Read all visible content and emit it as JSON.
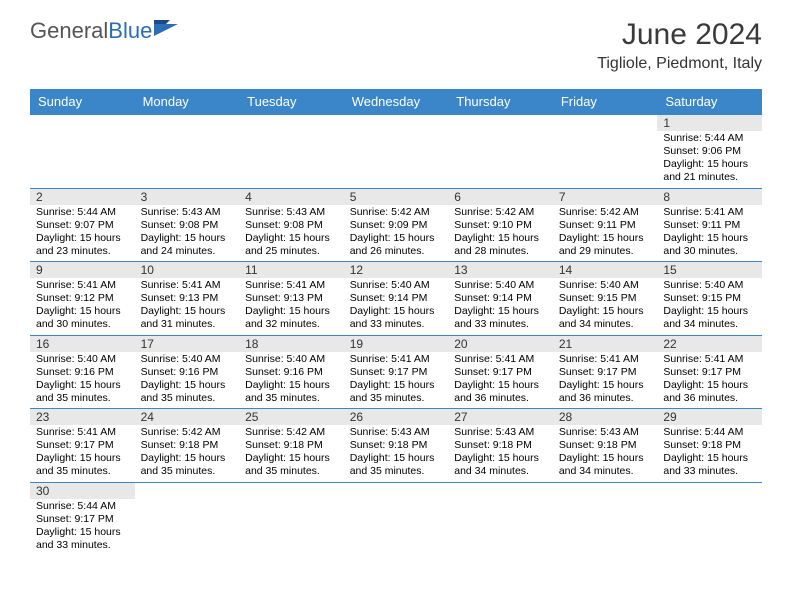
{
  "logo": {
    "word_grey": "General",
    "word_blue": "Blue"
  },
  "title": "June 2024",
  "location": "Tigliole, Piedmont, Italy",
  "colors": {
    "header_bg": "#3b86c8",
    "header_text": "#ffffff",
    "numbar_bg": "#e8e8e8",
    "text": "#000000",
    "border": "#3b86c8",
    "logo_blue": "#2a6db8"
  },
  "day_headers": [
    "Sunday",
    "Monday",
    "Tuesday",
    "Wednesday",
    "Thursday",
    "Friday",
    "Saturday"
  ],
  "weeks": [
    [
      null,
      null,
      null,
      null,
      null,
      null,
      {
        "n": "1",
        "sunrise": "Sunrise: 5:44 AM",
        "sunset": "Sunset: 9:06 PM",
        "daylight": "Daylight: 15 hours and 21 minutes."
      }
    ],
    [
      {
        "n": "2",
        "sunrise": "Sunrise: 5:44 AM",
        "sunset": "Sunset: 9:07 PM",
        "daylight": "Daylight: 15 hours and 23 minutes."
      },
      {
        "n": "3",
        "sunrise": "Sunrise: 5:43 AM",
        "sunset": "Sunset: 9:08 PM",
        "daylight": "Daylight: 15 hours and 24 minutes."
      },
      {
        "n": "4",
        "sunrise": "Sunrise: 5:43 AM",
        "sunset": "Sunset: 9:08 PM",
        "daylight": "Daylight: 15 hours and 25 minutes."
      },
      {
        "n": "5",
        "sunrise": "Sunrise: 5:42 AM",
        "sunset": "Sunset: 9:09 PM",
        "daylight": "Daylight: 15 hours and 26 minutes."
      },
      {
        "n": "6",
        "sunrise": "Sunrise: 5:42 AM",
        "sunset": "Sunset: 9:10 PM",
        "daylight": "Daylight: 15 hours and 28 minutes."
      },
      {
        "n": "7",
        "sunrise": "Sunrise: 5:42 AM",
        "sunset": "Sunset: 9:11 PM",
        "daylight": "Daylight: 15 hours and 29 minutes."
      },
      {
        "n": "8",
        "sunrise": "Sunrise: 5:41 AM",
        "sunset": "Sunset: 9:11 PM",
        "daylight": "Daylight: 15 hours and 30 minutes."
      }
    ],
    [
      {
        "n": "9",
        "sunrise": "Sunrise: 5:41 AM",
        "sunset": "Sunset: 9:12 PM",
        "daylight": "Daylight: 15 hours and 30 minutes."
      },
      {
        "n": "10",
        "sunrise": "Sunrise: 5:41 AM",
        "sunset": "Sunset: 9:13 PM",
        "daylight": "Daylight: 15 hours and 31 minutes."
      },
      {
        "n": "11",
        "sunrise": "Sunrise: 5:41 AM",
        "sunset": "Sunset: 9:13 PM",
        "daylight": "Daylight: 15 hours and 32 minutes."
      },
      {
        "n": "12",
        "sunrise": "Sunrise: 5:40 AM",
        "sunset": "Sunset: 9:14 PM",
        "daylight": "Daylight: 15 hours and 33 minutes."
      },
      {
        "n": "13",
        "sunrise": "Sunrise: 5:40 AM",
        "sunset": "Sunset: 9:14 PM",
        "daylight": "Daylight: 15 hours and 33 minutes."
      },
      {
        "n": "14",
        "sunrise": "Sunrise: 5:40 AM",
        "sunset": "Sunset: 9:15 PM",
        "daylight": "Daylight: 15 hours and 34 minutes."
      },
      {
        "n": "15",
        "sunrise": "Sunrise: 5:40 AM",
        "sunset": "Sunset: 9:15 PM",
        "daylight": "Daylight: 15 hours and 34 minutes."
      }
    ],
    [
      {
        "n": "16",
        "sunrise": "Sunrise: 5:40 AM",
        "sunset": "Sunset: 9:16 PM",
        "daylight": "Daylight: 15 hours and 35 minutes."
      },
      {
        "n": "17",
        "sunrise": "Sunrise: 5:40 AM",
        "sunset": "Sunset: 9:16 PM",
        "daylight": "Daylight: 15 hours and 35 minutes."
      },
      {
        "n": "18",
        "sunrise": "Sunrise: 5:40 AM",
        "sunset": "Sunset: 9:16 PM",
        "daylight": "Daylight: 15 hours and 35 minutes."
      },
      {
        "n": "19",
        "sunrise": "Sunrise: 5:41 AM",
        "sunset": "Sunset: 9:17 PM",
        "daylight": "Daylight: 15 hours and 35 minutes."
      },
      {
        "n": "20",
        "sunrise": "Sunrise: 5:41 AM",
        "sunset": "Sunset: 9:17 PM",
        "daylight": "Daylight: 15 hours and 36 minutes."
      },
      {
        "n": "21",
        "sunrise": "Sunrise: 5:41 AM",
        "sunset": "Sunset: 9:17 PM",
        "daylight": "Daylight: 15 hours and 36 minutes."
      },
      {
        "n": "22",
        "sunrise": "Sunrise: 5:41 AM",
        "sunset": "Sunset: 9:17 PM",
        "daylight": "Daylight: 15 hours and 36 minutes."
      }
    ],
    [
      {
        "n": "23",
        "sunrise": "Sunrise: 5:41 AM",
        "sunset": "Sunset: 9:17 PM",
        "daylight": "Daylight: 15 hours and 35 minutes."
      },
      {
        "n": "24",
        "sunrise": "Sunrise: 5:42 AM",
        "sunset": "Sunset: 9:18 PM",
        "daylight": "Daylight: 15 hours and 35 minutes."
      },
      {
        "n": "25",
        "sunrise": "Sunrise: 5:42 AM",
        "sunset": "Sunset: 9:18 PM",
        "daylight": "Daylight: 15 hours and 35 minutes."
      },
      {
        "n": "26",
        "sunrise": "Sunrise: 5:43 AM",
        "sunset": "Sunset: 9:18 PM",
        "daylight": "Daylight: 15 hours and 35 minutes."
      },
      {
        "n": "27",
        "sunrise": "Sunrise: 5:43 AM",
        "sunset": "Sunset: 9:18 PM",
        "daylight": "Daylight: 15 hours and 34 minutes."
      },
      {
        "n": "28",
        "sunrise": "Sunrise: 5:43 AM",
        "sunset": "Sunset: 9:18 PM",
        "daylight": "Daylight: 15 hours and 34 minutes."
      },
      {
        "n": "29",
        "sunrise": "Sunrise: 5:44 AM",
        "sunset": "Sunset: 9:18 PM",
        "daylight": "Daylight: 15 hours and 33 minutes."
      }
    ],
    [
      {
        "n": "30",
        "sunrise": "Sunrise: 5:44 AM",
        "sunset": "Sunset: 9:17 PM",
        "daylight": "Daylight: 15 hours and 33 minutes."
      },
      null,
      null,
      null,
      null,
      null,
      null
    ]
  ]
}
